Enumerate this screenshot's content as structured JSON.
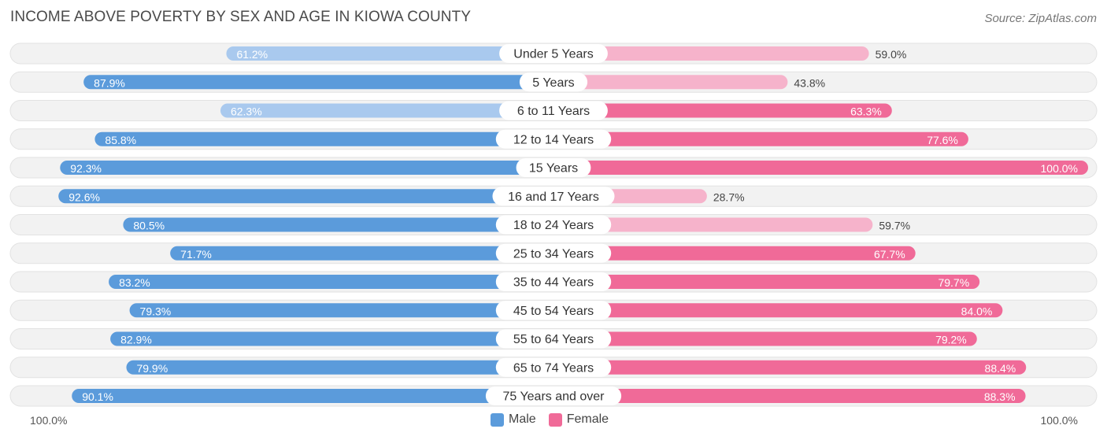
{
  "title": "INCOME ABOVE POVERTY BY SEX AND AGE IN KIOWA COUNTY",
  "source": "Source: ZipAtlas.com",
  "axis": {
    "left_label": "100.0%",
    "right_label": "100.0%"
  },
  "legend": {
    "male": "Male",
    "female": "Female"
  },
  "colors": {
    "male_strong": "#5b9bdb",
    "male_light": "#a9c9ee",
    "female_strong": "#f06a98",
    "female_light": "#f6b3cb",
    "row_bg": "#f2f2f2",
    "row_border": "#e2e2e2"
  },
  "chart_data": {
    "type": "bar",
    "orientation": "horizontal-diverging",
    "title": "INCOME ABOVE POVERTY BY SEX AND AGE IN KIOWA COUNTY",
    "categories": [
      "Under 5 Years",
      "5 Years",
      "6 to 11 Years",
      "12 to 14 Years",
      "15 Years",
      "16 and 17 Years",
      "18 to 24 Years",
      "25 to 34 Years",
      "35 to 44 Years",
      "45 to 54 Years",
      "55 to 64 Years",
      "65 to 74 Years",
      "75 Years and over"
    ],
    "series": [
      {
        "name": "Male",
        "values": [
          61.2,
          87.9,
          62.3,
          85.8,
          92.3,
          92.6,
          80.5,
          71.7,
          83.2,
          79.3,
          82.9,
          79.9,
          90.1
        ],
        "labels": [
          "61.2%",
          "87.9%",
          "62.3%",
          "85.8%",
          "92.3%",
          "92.6%",
          "80.5%",
          "71.7%",
          "83.2%",
          "79.3%",
          "82.9%",
          "79.9%",
          "90.1%"
        ]
      },
      {
        "name": "Female",
        "values": [
          59.0,
          43.8,
          63.3,
          77.6,
          100.0,
          28.7,
          59.7,
          67.7,
          79.7,
          84.0,
          79.2,
          88.4,
          88.3
        ],
        "labels": [
          "59.0%",
          "43.8%",
          "63.3%",
          "77.6%",
          "100.0%",
          "28.7%",
          "59.7%",
          "67.7%",
          "79.7%",
          "84.0%",
          "79.2%",
          "88.4%",
          "88.3%"
        ]
      }
    ],
    "xlim": [
      0,
      100
    ],
    "legend_position": "bottom-center"
  }
}
